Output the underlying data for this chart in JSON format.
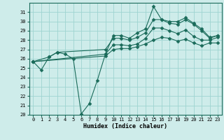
{
  "xlabel": "Humidex (Indice chaleur)",
  "bg_color": "#ceecea",
  "grid_color": "#9ed4d0",
  "line_color": "#1a6b5a",
  "xlim": [
    -0.5,
    23.5
  ],
  "ylim": [
    20,
    32
  ],
  "yticks": [
    20,
    21,
    22,
    23,
    24,
    25,
    26,
    27,
    28,
    29,
    30,
    31
  ],
  "xticks": [
    0,
    1,
    2,
    3,
    4,
    5,
    6,
    7,
    8,
    9,
    10,
    11,
    12,
    13,
    14,
    15,
    16,
    17,
    18,
    19,
    20,
    21,
    22,
    23
  ],
  "series": [
    {
      "x": [
        0,
        1,
        2,
        3,
        4,
        5,
        6,
        7,
        8,
        9,
        10,
        11,
        12,
        13,
        14,
        15,
        16,
        17,
        18,
        19,
        20,
        21,
        22,
        23
      ],
      "y": [
        25.7,
        24.8,
        26.2,
        26.7,
        26.5,
        26.0,
        20.1,
        21.2,
        23.7,
        26.5,
        28.5,
        28.5,
        28.2,
        28.8,
        29.2,
        31.6,
        30.2,
        30.0,
        30.0,
        30.4,
        29.8,
        29.2,
        28.3,
        28.5
      ],
      "marker": "D",
      "markersize": 2.5
    },
    {
      "x": [
        0,
        2,
        3,
        9,
        10,
        11,
        12,
        13,
        14,
        15,
        16,
        17,
        18,
        19,
        20,
        21,
        22,
        23
      ],
      "y": [
        25.7,
        26.2,
        26.7,
        27.0,
        28.2,
        28.2,
        28.0,
        28.3,
        28.8,
        30.2,
        30.2,
        29.8,
        29.7,
        30.2,
        29.7,
        29.0,
        28.2,
        28.5
      ],
      "marker": "D",
      "markersize": 2.5
    },
    {
      "x": [
        0,
        9,
        10,
        11,
        12,
        13,
        14,
        15,
        16,
        17,
        18,
        19,
        20,
        21,
        22,
        23
      ],
      "y": [
        25.7,
        26.5,
        27.5,
        27.5,
        27.4,
        27.6,
        28.2,
        29.3,
        29.3,
        29.0,
        28.7,
        29.1,
        28.4,
        28.0,
        28.0,
        28.3
      ],
      "marker": "D",
      "markersize": 2.5
    },
    {
      "x": [
        0,
        9,
        10,
        11,
        12,
        13,
        14,
        15,
        16,
        17,
        18,
        19,
        20,
        21,
        22,
        23
      ],
      "y": [
        25.7,
        26.3,
        27.0,
        27.1,
        27.1,
        27.3,
        27.6,
        28.0,
        28.3,
        28.2,
        27.9,
        28.1,
        27.7,
        27.4,
        27.7,
        27.7
      ],
      "marker": "D",
      "markersize": 2.5
    }
  ]
}
